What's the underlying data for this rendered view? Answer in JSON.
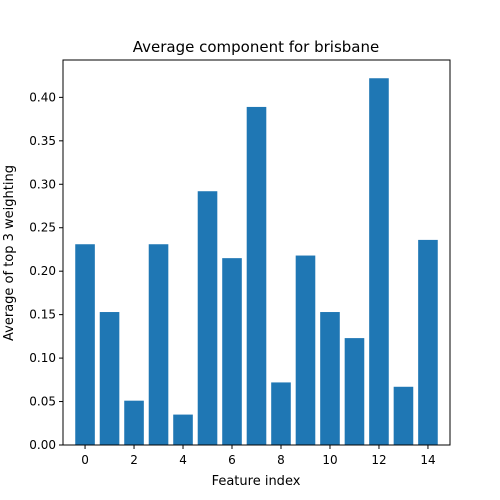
{
  "chart_data": {
    "type": "bar",
    "title": "Average component for brisbane",
    "xlabel": "Feature index",
    "ylabel": "Average of top 3 weighting",
    "x": [
      0,
      1,
      2,
      3,
      4,
      5,
      6,
      7,
      8,
      9,
      10,
      11,
      12,
      13,
      14
    ],
    "values": [
      0.231,
      0.153,
      0.051,
      0.231,
      0.035,
      0.292,
      0.215,
      0.389,
      0.072,
      0.218,
      0.153,
      0.123,
      0.422,
      0.067,
      0.236
    ],
    "xlim": [
      -0.9,
      14.9
    ],
    "ylim": [
      0,
      0.443
    ],
    "xticks": [
      0,
      2,
      4,
      6,
      8,
      10,
      12,
      14
    ],
    "yticks": [
      0.0,
      0.05,
      0.1,
      0.15,
      0.2,
      0.25,
      0.3,
      0.35,
      0.4
    ],
    "yticklabels": [
      "0.00",
      "0.05",
      "0.10",
      "0.15",
      "0.20",
      "0.25",
      "0.30",
      "0.35",
      "0.40"
    ],
    "bar_color": "#1f77b4",
    "grid": false,
    "legend": "none"
  }
}
